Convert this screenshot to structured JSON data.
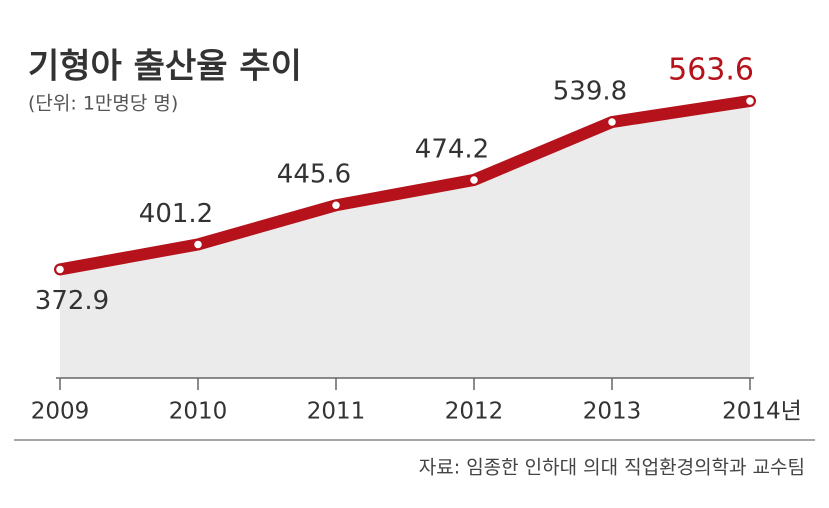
{
  "chart_data": {
    "type": "line",
    "title": "기형아 출산율 추이",
    "subtitle": "(단위: 1만명당 명)",
    "categories": [
      "2009",
      "2010",
      "2011",
      "2012",
      "2013",
      "2014년"
    ],
    "series": [
      {
        "values": [
          372.9,
          401.2,
          445.6,
          474.2,
          539.8,
          563.6
        ],
        "color": "#b5121b"
      }
    ],
    "area_fill": "#ebebeb",
    "highlight_last_label": true,
    "ylim": [
      250,
      610
    ],
    "source": "자료: 임종한 인하대 의대 직업환경의학과 교수팀"
  }
}
